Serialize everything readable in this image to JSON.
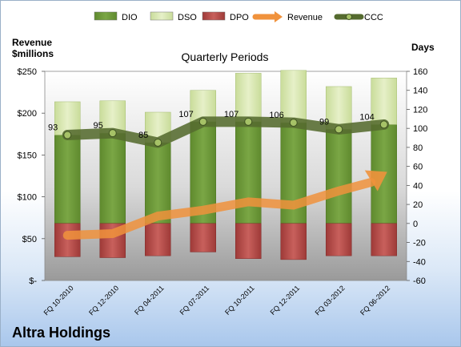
{
  "company": "Altra Holdings",
  "chart_data": {
    "type": "bar",
    "title": "Quarterly Periods",
    "y_left_label": [
      "Revenue",
      "$millions"
    ],
    "y_right_label": "Days",
    "y_left_ticks": [
      "$-",
      "$50",
      "$100",
      "$150",
      "$200",
      "$250"
    ],
    "y_left_range": [
      0,
      250
    ],
    "y_right_ticks": [
      "-60",
      "-40",
      "-20",
      "0",
      "20",
      "40",
      "60",
      "80",
      "100",
      "120",
      "140",
      "160"
    ],
    "y_right_range": [
      -60,
      160
    ],
    "categories": [
      "FQ 10-2010",
      "FQ 12-2010",
      "FQ 04-2011",
      "FQ 07-2011",
      "FQ 10-2011",
      "FQ 12-2011",
      "FQ 03-2012",
      "FQ 06-2012"
    ],
    "legend": [
      "DIO",
      "DSO",
      "DPO",
      "Revenue",
      "CCC"
    ],
    "legend_position": "top",
    "series": [
      {
        "name": "DIO",
        "axis": "right",
        "values": [
          93,
          95,
          85,
          107,
          107,
          106,
          99,
          104
        ],
        "color": "#6e9a3c"
      },
      {
        "name": "DSO",
        "axis": "right",
        "values": [
          35,
          34,
          32,
          33,
          51,
          55,
          45,
          49
        ],
        "color": "#dcebb4"
      },
      {
        "name": "DPO",
        "axis": "right",
        "values": [
          35,
          36,
          34,
          30,
          37,
          38,
          34,
          34
        ],
        "color": "#c0504d"
      },
      {
        "name": "Revenue",
        "axis": "left",
        "values": [
          54,
          56,
          77,
          84,
          94,
          90,
          107,
          126
        ],
        "color": "#f0923c"
      },
      {
        "name": "CCC",
        "axis": "right",
        "values": [
          93,
          95,
          85,
          107,
          107,
          106,
          99,
          104
        ],
        "labels": [
          "93",
          "95",
          "85",
          "107",
          "107",
          "106",
          "99",
          "104"
        ],
        "color": "#556b2f"
      }
    ],
    "grid": false
  }
}
